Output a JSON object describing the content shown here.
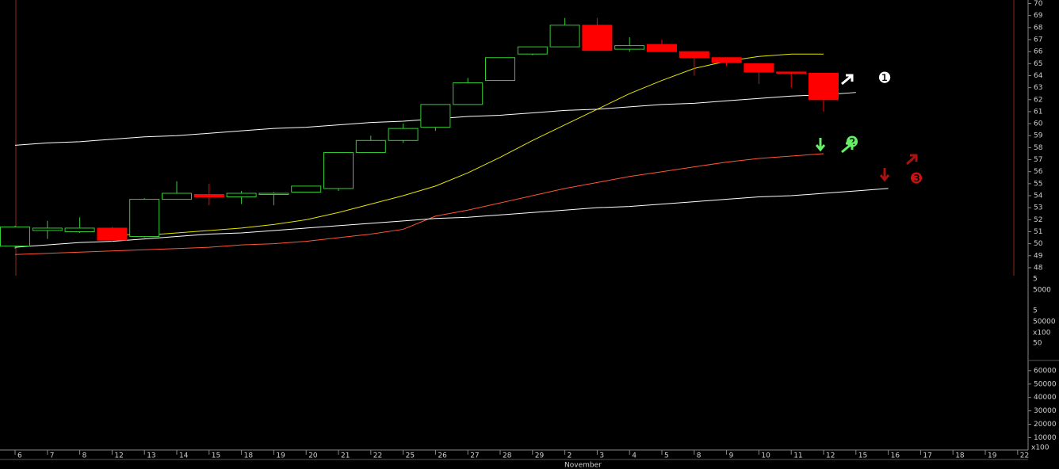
{
  "chart_data": [
    {
      "type": "candlestick",
      "categories": [
        "6",
        "7",
        "8",
        "12",
        "13",
        "14",
        "15",
        "18",
        "19",
        "20",
        "21",
        "22",
        "25",
        "26",
        "27",
        "28",
        "29",
        "2",
        "3",
        "4",
        "5",
        "8",
        "9",
        "10",
        "11",
        "12",
        "15",
        "16",
        "17",
        "18",
        "19",
        "22"
      ],
      "month_label": "November",
      "up_color": "#33cc33",
      "down_color": "#ff0000",
      "open": [
        49.8,
        51.1,
        51.0,
        51.3,
        50.6,
        53.7,
        54.1,
        53.9,
        54.1,
        54.3,
        54.6,
        57.6,
        58.6,
        59.7,
        61.6,
        63.6,
        65.8,
        66.4,
        68.2,
        66.2,
        66.6,
        66.0,
        65.5,
        65.0,
        64.3,
        64.2,
        null,
        null,
        null,
        null,
        null,
        null
      ],
      "high": [
        51.5,
        51.9,
        52.2,
        51.4,
        53.8,
        55.2,
        55.0,
        54.4,
        54.3,
        54.8,
        57.6,
        59.0,
        60.0,
        61.6,
        63.8,
        65.5,
        66.4,
        68.8,
        68.8,
        67.2,
        67.0,
        66.0,
        65.5,
        65.0,
        64.3,
        64.2,
        null,
        null,
        null,
        null,
        null,
        null
      ],
      "low": [
        49.6,
        50.4,
        50.9,
        50.2,
        50.5,
        53.7,
        53.2,
        53.3,
        53.2,
        54.3,
        54.4,
        57.6,
        58.4,
        59.4,
        61.6,
        63.6,
        65.7,
        66.4,
        66.1,
        66.0,
        66.0,
        64.0,
        64.8,
        63.3,
        63.0,
        61.0,
        null,
        null,
        null,
        null,
        null,
        null
      ],
      "close": [
        51.4,
        51.3,
        51.3,
        50.3,
        53.7,
        54.2,
        53.9,
        54.2,
        54.2,
        54.8,
        57.6,
        58.6,
        59.6,
        61.6,
        63.4,
        65.5,
        66.4,
        68.2,
        66.1,
        66.5,
        66.0,
        65.5,
        65.1,
        64.3,
        64.2,
        62.0,
        null,
        null,
        null,
        null,
        null,
        null
      ],
      "lines": [
        {
          "color": "#e6e600",
          "values": [
            null,
            null,
            null,
            50.8,
            50.7,
            50.9,
            51.1,
            51.3,
            51.6,
            52.0,
            52.6,
            53.3,
            54.0,
            54.8,
            55.9,
            57.2,
            58.6,
            59.9,
            61.2,
            62.5,
            63.6,
            64.6,
            65.2,
            65.6,
            65.8,
            65.8,
            null,
            null,
            null,
            null,
            null,
            null
          ]
        },
        {
          "color": "#ff5533",
          "values": [
            49.1,
            49.2,
            49.3,
            49.4,
            49.5,
            49.6,
            49.7,
            49.9,
            50.0,
            50.2,
            50.5,
            50.8,
            51.2,
            52.3,
            52.8,
            53.4,
            54.0,
            54.6,
            55.1,
            55.6,
            56.0,
            56.4,
            56.8,
            57.1,
            57.3,
            57.5,
            null,
            null,
            null,
            null,
            null,
            null
          ]
        },
        {
          "color": "#ffffff",
          "values": [
            58.2,
            58.4,
            58.5,
            58.7,
            58.9,
            59.0,
            59.2,
            59.4,
            59.6,
            59.7,
            59.9,
            60.1,
            60.2,
            60.4,
            60.6,
            60.7,
            60.9,
            61.1,
            61.2,
            61.4,
            61.6,
            61.7,
            61.9,
            62.1,
            62.3,
            62.4,
            62.6,
            null,
            null,
            null,
            null,
            null
          ]
        },
        {
          "color": "#ffffff",
          "values": [
            49.7,
            49.9,
            50.1,
            50.2,
            50.4,
            50.6,
            50.8,
            50.9,
            51.1,
            51.3,
            51.5,
            51.7,
            51.9,
            52.1,
            52.2,
            52.4,
            52.6,
            52.8,
            53.0,
            53.1,
            53.3,
            53.5,
            53.7,
            53.9,
            54.0,
            54.2,
            54.4,
            54.6,
            null,
            null,
            null,
            null
          ]
        }
      ],
      "ylim": [
        47.6,
        70.3
      ],
      "yticks": [
        48,
        49,
        50,
        51,
        52,
        53,
        54,
        55,
        56,
        57,
        58,
        59,
        60,
        61,
        62,
        63,
        64,
        65,
        66,
        67,
        68,
        69,
        70
      ],
      "annotations": [
        {
          "text": "❶",
          "color": "#ffffff"
        },
        {
          "text": "❷",
          "color": "#66ee66"
        },
        {
          "text": "❸",
          "color": "#cc1111"
        }
      ]
    },
    {
      "type": "panel",
      "labels": [
        "5",
        "5000",
        "5",
        "50000",
        "x100",
        "50"
      ]
    },
    {
      "type": "panel",
      "ylim": [
        2000,
        67600
      ],
      "yticks": [
        10000,
        20000,
        30000,
        40000,
        50000,
        60000
      ],
      "unit_label": "x100"
    }
  ]
}
